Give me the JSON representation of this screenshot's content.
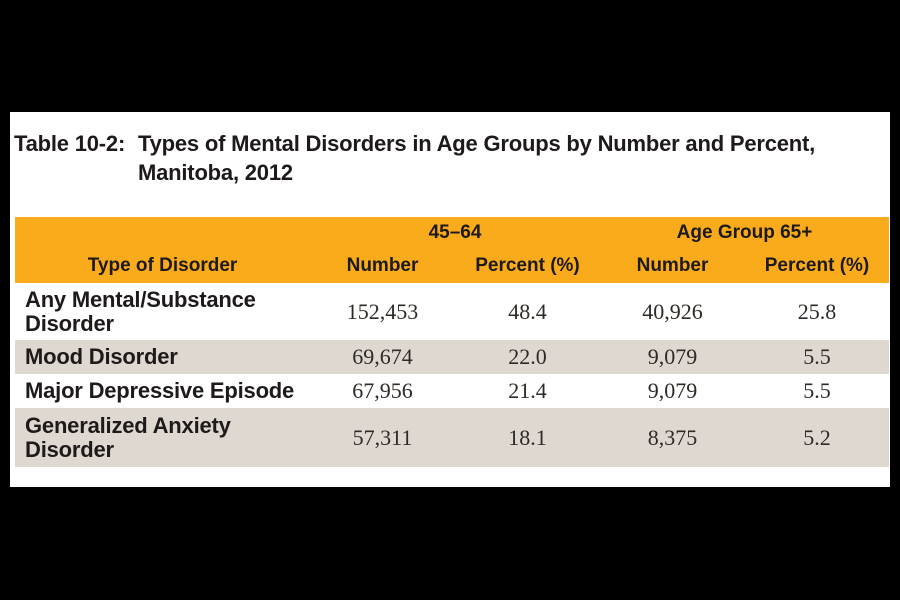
{
  "title": {
    "prefix": "Table 10-2:",
    "line1": "Types of Mental Disorders in Age Groups by Number and Percent,",
    "line2": "Manitoba, 2012"
  },
  "table": {
    "col_groups": [
      {
        "label": "45–64"
      },
      {
        "label": "Age Group 65+"
      }
    ],
    "columns": [
      "Type of Disorder",
      "Number",
      "Percent (%)",
      "Number",
      "Percent (%)"
    ],
    "rows": [
      {
        "label": "Any Mental/Substance Disorder",
        "values": [
          "152,453",
          "48.4",
          "40,926",
          "25.8"
        ]
      },
      {
        "label": "Mood Disorder",
        "values": [
          "69,674",
          "22.0",
          "9,079",
          "5.5"
        ]
      },
      {
        "label": "Major Depressive Episode",
        "values": [
          "67,956",
          "21.4",
          "9,079",
          "5.5"
        ]
      },
      {
        "label": "Generalized Anxiety Disorder",
        "values": [
          "57,311",
          "18.1",
          "8,375",
          "5.2"
        ]
      }
    ]
  },
  "colors": {
    "frame_bg": "#000000",
    "page_bg": "#FFFFFF",
    "header_bg": "#F9AB1C",
    "row_alt_bg": "#DFD8D0",
    "label_text": "#1D1A19",
    "number_text": "#2E2A26"
  }
}
